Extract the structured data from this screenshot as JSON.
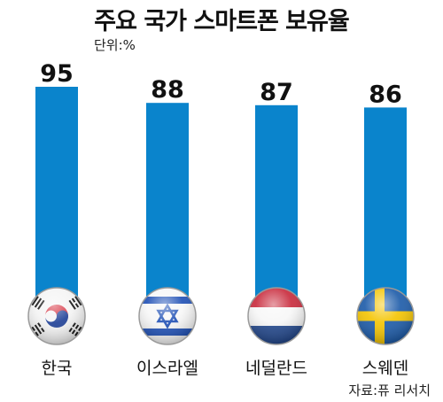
{
  "title": "주요 국가 스마트폰 보유율",
  "unit": "단위:%",
  "source": "자료:퓨 리서치",
  "colors": {
    "bar": "#0a84cc",
    "bar_shade": "#0670b2"
  },
  "chart_data": {
    "type": "bar",
    "title": "주요 국가 스마트폰 보유율",
    "categories": [
      "한국",
      "이스라엘",
      "네덜란드",
      "스웨덴"
    ],
    "values": [
      95,
      88,
      87,
      86
    ],
    "flags": [
      "south-korea-flag-icon",
      "israel-flag-icon",
      "netherlands-flag-icon",
      "sweden-flag-icon"
    ],
    "ylabel": "",
    "xlabel": "",
    "ylim": [
      0,
      95
    ],
    "grid": false,
    "legend": "none"
  }
}
